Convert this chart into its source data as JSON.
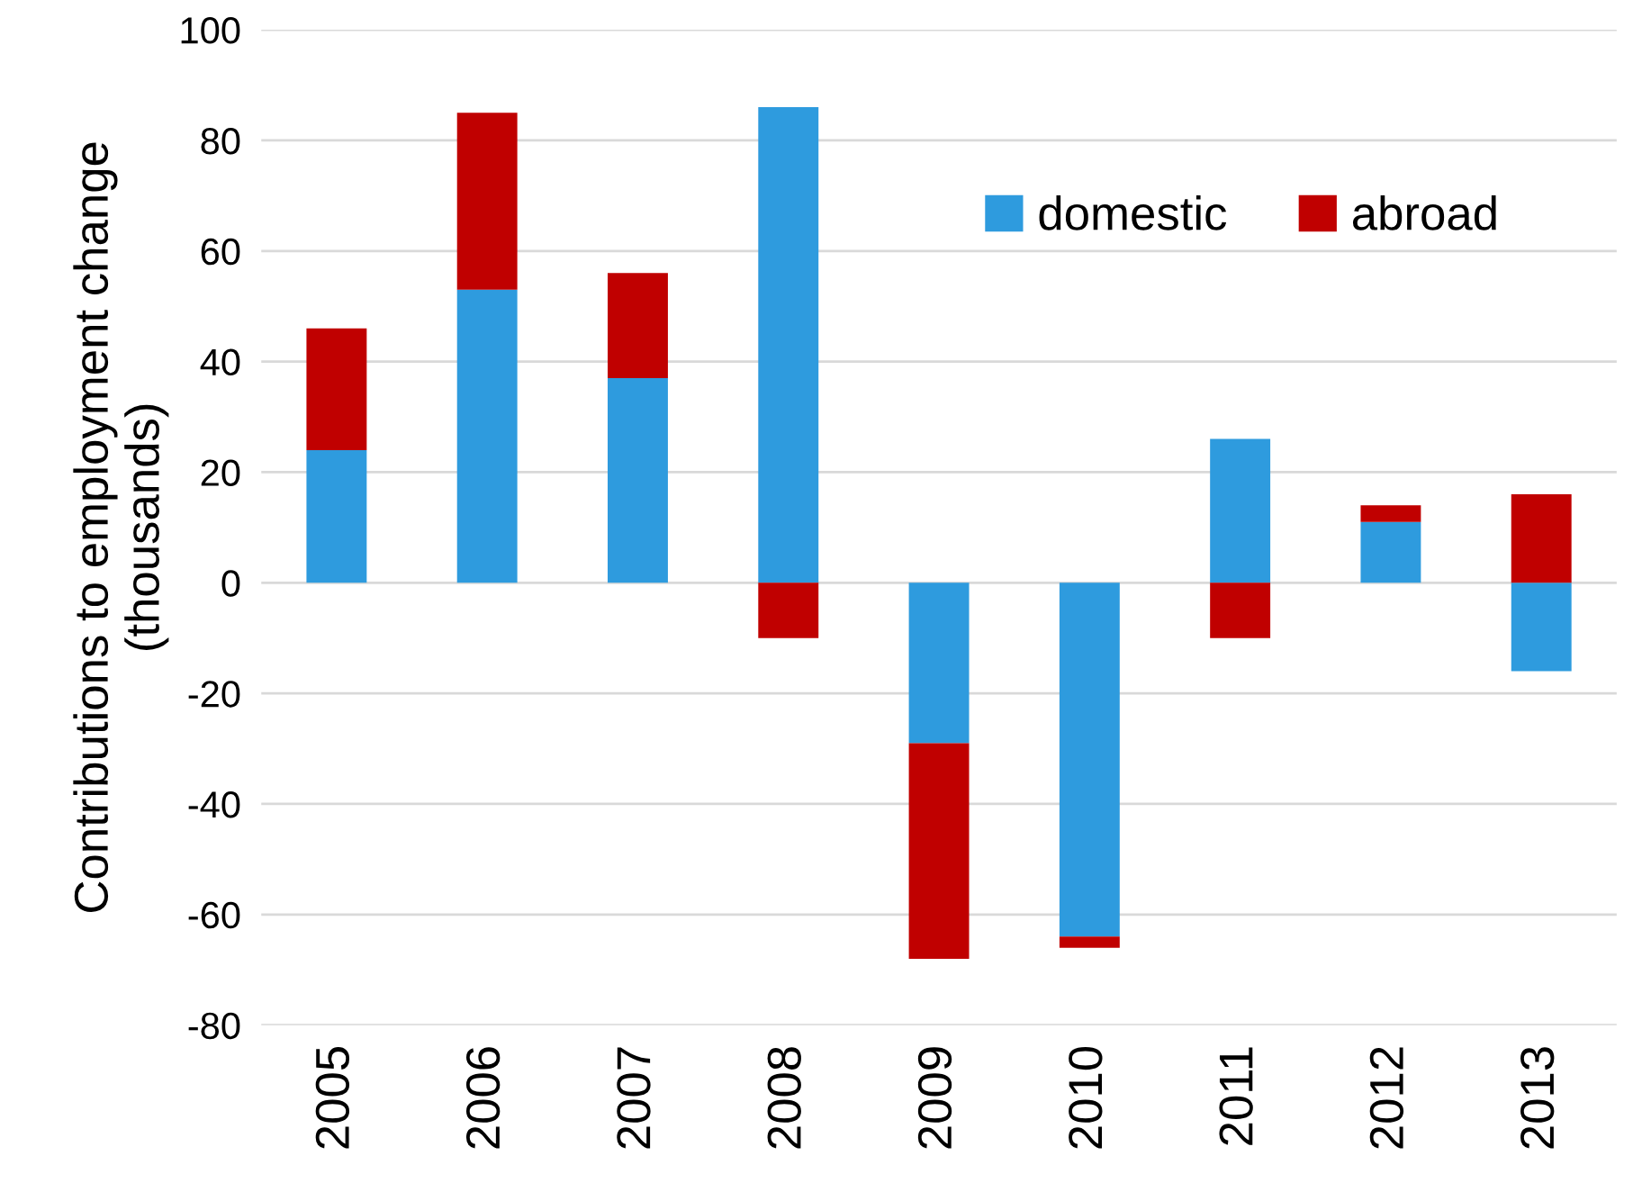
{
  "chart_data": {
    "type": "bar",
    "ylabel": "Contributions to employment change\n(thousands)",
    "categories": [
      "2005",
      "2006",
      "2007",
      "2008",
      "2009",
      "2010",
      "2011",
      "2012",
      "2013"
    ],
    "series": [
      {
        "name": "domestic",
        "color": "#2e9bde",
        "values": [
          24,
          53,
          37,
          86,
          -29,
          -64,
          26,
          11,
          -16
        ]
      },
      {
        "name": "abroad",
        "color": "#c00000",
        "values": [
          22,
          32,
          19,
          -10,
          -39,
          -2,
          -10,
          3,
          16
        ]
      }
    ],
    "stacked": true,
    "ylim": [
      -80,
      100
    ],
    "yticks": [
      -80,
      -60,
      -40,
      -20,
      0,
      20,
      40,
      60,
      80,
      100
    ],
    "grid": "y",
    "legend": "top right"
  }
}
